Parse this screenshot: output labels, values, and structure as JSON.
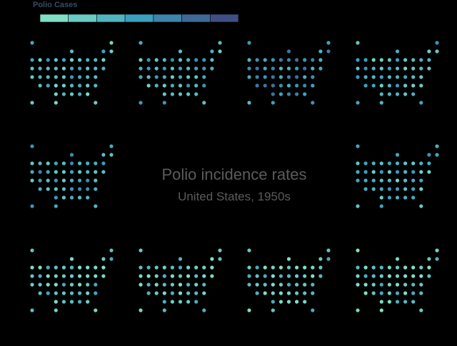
{
  "chart_data": {
    "type": "heatmap",
    "title": "Polio incidence rates",
    "subtitle": "United States, 1950s",
    "legend": {
      "title": "Polio Cases",
      "placement": "top-left",
      "scale": "sequential",
      "color_low": "#7fe0c6",
      "color_mid": "#3aa0bf",
      "color_high": "#3f4f86",
      "bins": 7
    },
    "panels": [
      {
        "panel": 1,
        "mean_intensity": 0.3
      },
      {
        "panel": 2,
        "mean_intensity": 0.35
      },
      {
        "panel": 3,
        "mean_intensity": 0.55
      },
      {
        "panel": 4,
        "mean_intensity": 0.32
      },
      {
        "panel": 5,
        "mean_intensity": 0.4
      },
      {
        "panel": 6,
        "mean_intensity": 0.33
      },
      {
        "panel": 7,
        "mean_intensity": 0.2
      },
      {
        "panel": 8,
        "mean_intensity": 0.15
      },
      {
        "panel": 9,
        "mean_intensity": 0.18
      },
      {
        "panel": 10,
        "mean_intensity": 0.16
      }
    ]
  },
  "colors": {
    "background": "#000000",
    "text": "#5b5b5b",
    "legend_title": "#3a4a66"
  }
}
